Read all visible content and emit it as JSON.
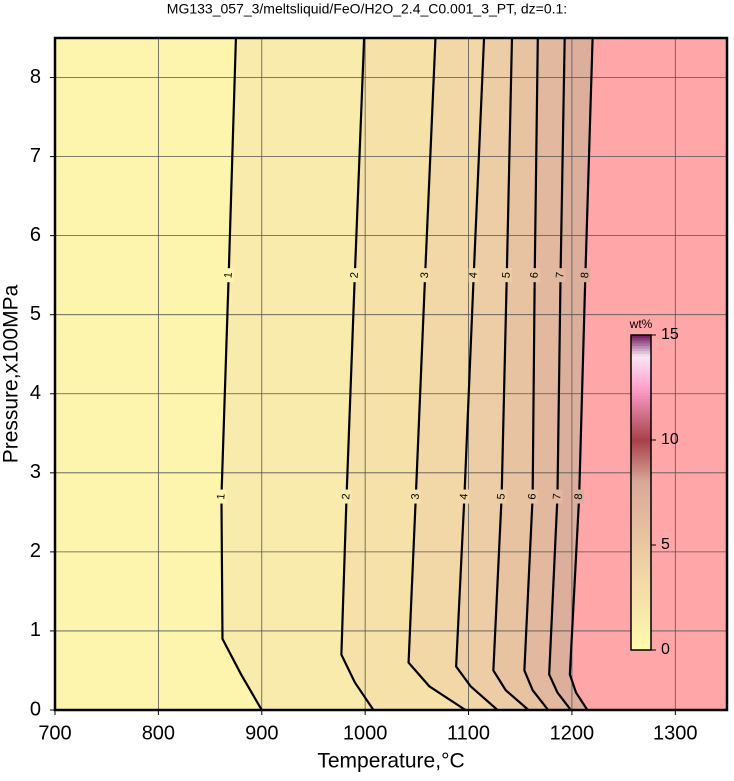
{
  "chart_data": {
    "type": "contour",
    "title": "MG133_057_3/meltsliquid/FeO/H2O_2.4_C0.001_3_PT, dz=0.1:",
    "x_label": "Temperature,°C",
    "y_label": "Pressure,x100MPa",
    "xlim": [
      700,
      1350
    ],
    "xticks": [
      700,
      800,
      900,
      1000,
      1100,
      1200,
      1300
    ],
    "ylim": [
      0,
      8.5
    ],
    "yticks": [
      0,
      1,
      2,
      3,
      4,
      5,
      6,
      7,
      8
    ],
    "grid": true,
    "no_data_color": "#ffa6a9",
    "contours": [
      {
        "level": 1,
        "x": [
          900,
          880,
          862,
          861,
          868,
          875
        ],
        "y": [
          0,
          0.45,
          0.9,
          2.7,
          5.5,
          8.5
        ]
      },
      {
        "level": 2,
        "x": [
          1008,
          990,
          977,
          982,
          990,
          999
        ],
        "y": [
          0,
          0.35,
          0.7,
          2.7,
          5.5,
          8.5
        ]
      },
      {
        "level": 3,
        "x": [
          1097,
          1062,
          1042,
          1049,
          1058,
          1068
        ],
        "y": [
          0,
          0.3,
          0.6,
          2.7,
          5.5,
          8.5
        ]
      },
      {
        "level": 4,
        "x": [
          1128,
          1102,
          1088,
          1096,
          1105,
          1115
        ],
        "y": [
          0,
          0.3,
          0.55,
          2.7,
          5.5,
          8.5
        ]
      },
      {
        "level": 5,
        "x": [
          1158,
          1136,
          1124,
          1132,
          1137,
          1142
        ],
        "y": [
          0,
          0.25,
          0.5,
          2.7,
          5.5,
          8.5
        ]
      },
      {
        "level": 6,
        "x": [
          1177,
          1162,
          1154,
          1162,
          1164,
          1167
        ],
        "y": [
          0,
          0.25,
          0.5,
          2.7,
          5.5,
          8.5
        ]
      },
      {
        "level": 7,
        "x": [
          1199,
          1186,
          1178,
          1186,
          1189,
          1193
        ],
        "y": [
          0,
          0.22,
          0.45,
          2.7,
          5.5,
          8.5
        ]
      },
      {
        "level": 8,
        "x": [
          1215,
          1204,
          1198,
          1207,
          1213,
          1220
        ],
        "y": [
          0,
          0.22,
          0.45,
          2.7,
          5.5,
          8.5
        ]
      }
    ],
    "colorbar": {
      "label": "wt%",
      "lim": [
        0,
        15
      ],
      "ticks": [
        0,
        5,
        10,
        15
      ],
      "colormap": [
        [
          0,
          "#fffaae"
        ],
        [
          4,
          "#f0d2a6"
        ],
        [
          8,
          "#d9a99a"
        ],
        [
          10,
          "#a8404a"
        ],
        [
          12.5,
          "#ffa0cc"
        ],
        [
          14,
          "#fbe6f4"
        ],
        [
          15,
          "#6b1a5a"
        ]
      ]
    }
  }
}
